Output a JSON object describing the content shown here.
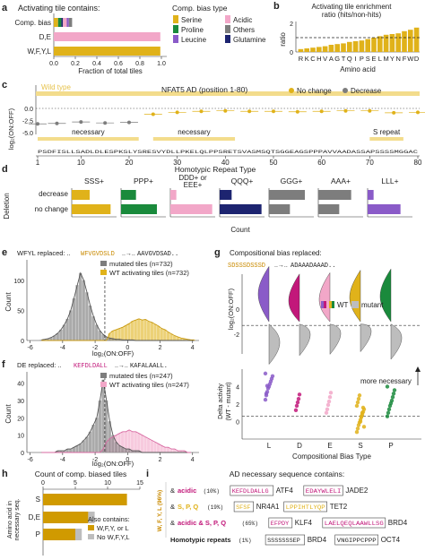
{
  "figure": {
    "colors": {
      "gold": "#e0b21a",
      "gold_light": "#f3dc8c",
      "pink": "#f2a7c8",
      "magenta": "#c2187a",
      "green": "#1a8a3c",
      "purple": "#8a5bc8",
      "navy": "#1d2470",
      "gray": "#7d7d7d",
      "lightgray": "#bdbdbd"
    }
  },
  "panel_a": {
    "letter": "a",
    "title": "Activating tile contains:",
    "xlabel": "Fraction of total tiles",
    "legend_title": "Comp. bias type",
    "legend": [
      {
        "label": "Serine",
        "color": "#e0b21a"
      },
      {
        "label": "Acidic",
        "color": "#f2a7c8"
      },
      {
        "label": "Proline",
        "color": "#1a8a3c"
      },
      {
        "label": "Others",
        "color": "#7d7d7d"
      },
      {
        "label": "Leucine",
        "color": "#8a5bc8"
      },
      {
        "label": "Glutamine",
        "color": "#1d2470"
      }
    ],
    "chart_data": {
      "type": "bar",
      "orientation": "horizontal",
      "categories": [
        "Comp. bias",
        "D,E",
        "W,F,Y,L"
      ],
      "xlim": [
        0,
        1.0
      ],
      "xticks": [
        "0.0",
        "0.2",
        "0.4",
        "0.6",
        "0.8",
        "1.0"
      ],
      "series": [
        {
          "name": "Serine",
          "values": [
            0.04,
            0,
            0
          ]
        },
        {
          "name": "Proline",
          "values": [
            0.03,
            0,
            0
          ]
        },
        {
          "name": "Glutamine",
          "values": [
            0.015,
            0,
            0
          ]
        },
        {
          "name": "Acidic",
          "values": [
            0.035,
            0.99,
            0
          ]
        },
        {
          "name": "Leucine",
          "values": [
            0.02,
            0,
            0
          ]
        },
        {
          "name": "Others",
          "values": [
            0.03,
            0,
            0
          ]
        },
        {
          "name": "W,F,Y,L",
          "values": [
            0,
            0,
            0.99
          ]
        }
      ]
    }
  },
  "panel_b": {
    "letter": "b",
    "title_line1": "Activating tile enrichment",
    "title_line2": "ratio (hits/non-hits)",
    "ylabel": "ratio",
    "xlabel": "Amino acid",
    "chart_data": {
      "type": "bar",
      "categories": [
        "R",
        "K",
        "C",
        "H",
        "V",
        "A",
        "G",
        "T",
        "Q",
        "I",
        "P",
        "S",
        "E",
        "L",
        "M",
        "Y",
        "N",
        "F",
        "W",
        "D"
      ],
      "values": [
        0.2,
        0.25,
        0.3,
        0.35,
        0.4,
        0.5,
        0.55,
        0.6,
        0.7,
        0.75,
        0.8,
        0.9,
        1.0,
        1.1,
        1.2,
        1.25,
        1.3,
        1.45,
        1.55,
        1.7
      ],
      "ylim": [
        0,
        2
      ],
      "yticks": [
        "0",
        "2"
      ],
      "reference_line": 1
    }
  },
  "panel_c": {
    "letter": "c",
    "wildtype_label": "Wild type",
    "title": "NFAT5 AD (position 1-80)",
    "legend_nochange": "No change",
    "legend_decrease": "Decrease",
    "ylabel": "log₂(ON:OFF)",
    "yticks": [
      "0.0",
      "-2.5",
      "-5.0"
    ],
    "region_labels": [
      "necessary",
      "necessary",
      "S repeat"
    ],
    "sequence": "PSDFISLLSADLDLESPKSLYSRESVYDLLPKELQLPPSRETSVASMSQTSGGEAGSPPPAVVAADASSAPSSSSMGGAC",
    "xticks": [
      "1",
      "10",
      "20",
      "30",
      "40",
      "50",
      "60",
      "70",
      "80"
    ],
    "chart_data": {
      "type": "line",
      "x": [
        1,
        5,
        10,
        15,
        20,
        25,
        30,
        35,
        40,
        45,
        50,
        55,
        60,
        65,
        70,
        75,
        80
      ],
      "wild_type": 0.4,
      "mutant_means": [
        -3.2,
        -3.1,
        -2.8,
        -3.0,
        -2.9,
        -1.2,
        -0.8,
        -0.6,
        -0.5,
        -0.6,
        -0.6,
        -0.7,
        -0.6,
        -0.5,
        -0.5,
        -0.9,
        -0.8
      ]
    }
  },
  "panel_d": {
    "letter": "d",
    "title": "Homotypic Repeat Type",
    "ylabel": "Deletion",
    "xlabel": "Count",
    "row_labels": [
      "decrease",
      "no change"
    ],
    "chart_data": {
      "type": "bar",
      "orientation": "horizontal",
      "categories": [
        "decrease",
        "no change"
      ],
      "series": [
        {
          "name": "SSS+",
          "color": "#e0b21a",
          "values": [
            6,
            13
          ]
        },
        {
          "name": "PPP+",
          "color": "#1a8a3c",
          "values": [
            5,
            12
          ]
        },
        {
          "name": "DDD+ or EEE+",
          "color": "#f2a7c8",
          "values": [
            2,
            14
          ]
        },
        {
          "name": "QQQ+",
          "color": "#1d2470",
          "values": [
            4,
            14
          ]
        },
        {
          "name": "GGG+",
          "color": "#7d7d7d",
          "values": [
            12,
            7
          ]
        },
        {
          "name": "AAA+",
          "color": "#7d7d7d",
          "values": [
            11,
            7
          ]
        },
        {
          "name": "LLL+",
          "color": "#8a5bc8",
          "values": [
            2,
            11
          ]
        }
      ]
    }
  },
  "panel_e": {
    "letter": "e",
    "replaced_label": "WFYL replaced: ..",
    "seq_before": "WFVGVDSLD",
    "seq_after": "AAVGVDSAD..",
    "arrow": "..→..",
    "legend_mutated": "mutated tiles (n=732)",
    "legend_wt": "WT activating tiles (n=732)",
    "ylabel": "Count",
    "xlabel": "log₂(ON:OFF)",
    "yticks": [
      "0",
      "50",
      "100"
    ],
    "xticks": [
      "-6",
      "-4",
      "-2",
      "0",
      "2",
      "4"
    ],
    "chart_data": {
      "type": "histogram",
      "bins_x": [
        -5.4,
        -5.2,
        -5.0,
        -4.8,
        -4.6,
        -4.4,
        -4.2,
        -4.0,
        -3.8,
        -3.6,
        -3.4,
        -3.2,
        -3.0,
        -2.8,
        -2.6,
        -2.4,
        -2.2,
        -2.0,
        -1.8,
        -1.6,
        -1.4,
        -1.2,
        -1.0,
        -0.8,
        -0.6,
        -0.4,
        -0.2,
        0.0,
        0.2,
        0.4,
        0.6,
        0.8,
        1.0,
        1.2,
        1.4,
        1.6,
        1.8,
        2.0,
        2.2,
        2.4,
        2.6,
        2.8,
        3.0,
        3.2,
        3.4,
        3.6,
        3.8,
        4.0
      ],
      "mutated": [
        1,
        2,
        3,
        5,
        8,
        12,
        18,
        26,
        36,
        50,
        70,
        92,
        112,
        100,
        80,
        58,
        40,
        26,
        16,
        10,
        6,
        4,
        3,
        2,
        2,
        1,
        1,
        1,
        1,
        0,
        0,
        0,
        0,
        0,
        0,
        0,
        0,
        0,
        0,
        0,
        0,
        0,
        0,
        0,
        0,
        0,
        0,
        0
      ],
      "wt": [
        0,
        0,
        0,
        0,
        0,
        0,
        0,
        0,
        0,
        0,
        0,
        0,
        0,
        0,
        0,
        0,
        0,
        0,
        0,
        0,
        0,
        12,
        16,
        18,
        20,
        22,
        25,
        28,
        32,
        34,
        36,
        34,
        35,
        32,
        30,
        27,
        24,
        20,
        18,
        14,
        11,
        8,
        6,
        4,
        3,
        2,
        1,
        1
      ],
      "threshold": -1.4,
      "xlim": [
        -6.2,
        4.4
      ],
      "ylim": [
        0,
        125
      ]
    }
  },
  "panel_f": {
    "letter": "f",
    "replaced_label": "DE replaced: ..",
    "seq_before": "KEFDLDALL",
    "seq_after": "KAFALAALL.",
    "arrow": "..→..",
    "legend_mutated": "mutated tiles (n=247)",
    "legend_wt": "WT activating tiles (n=247)",
    "ylabel": "Count",
    "xlabel": "log₂(ON:OFF)",
    "yticks": [
      "0",
      "10",
      "20",
      "30",
      "40"
    ],
    "xticks": [
      "-6",
      "-4",
      "-2",
      "0",
      "2",
      "4"
    ],
    "chart_data": {
      "type": "histogram",
      "bins_x": [
        -5.4,
        -5.2,
        -5.0,
        -4.8,
        -4.6,
        -4.4,
        -4.2,
        -4.0,
        -3.8,
        -3.6,
        -3.4,
        -3.2,
        -3.0,
        -2.8,
        -2.6,
        -2.4,
        -2.2,
        -2.0,
        -1.8,
        -1.6,
        -1.4,
        -1.2,
        -1.0,
        -0.8,
        -0.6,
        -0.4,
        -0.2,
        0.0,
        0.2,
        0.4,
        0.6,
        0.8,
        1.0,
        1.2,
        1.4,
        1.6,
        1.8,
        2.0,
        2.2,
        2.4,
        2.6,
        2.8,
        3.0,
        3.2,
        3.4,
        3.6,
        3.8
      ],
      "mutated": [
        0,
        0,
        0,
        0,
        0,
        1,
        1,
        1,
        2,
        2,
        3,
        4,
        5,
        7,
        9,
        12,
        16,
        20,
        30,
        42,
        30,
        18,
        10,
        6,
        4,
        3,
        2,
        2,
        1,
        1,
        1,
        0,
        0,
        0,
        0,
        0,
        0,
        0,
        0,
        0,
        0,
        0,
        0,
        0,
        0,
        0,
        0
      ],
      "wt": [
        0,
        0,
        0,
        0,
        0,
        0,
        0,
        0,
        0,
        0,
        0,
        0,
        0,
        0,
        0,
        0,
        0,
        0,
        0,
        2,
        6,
        8,
        9,
        10,
        11,
        12,
        12,
        13,
        12,
        12,
        11,
        10,
        9,
        8,
        7,
        6,
        5,
        4,
        3,
        3,
        2,
        2,
        1,
        1,
        1,
        0,
        0
      ],
      "threshold": -1.4,
      "xlim": [
        -6.2,
        4.4
      ],
      "ylim": [
        0,
        45
      ]
    }
  },
  "panel_g": {
    "letter": "g",
    "title": "Compositional bias replaced:",
    "seq_before": "SDSSSDSSSD",
    "seq_after": "ADAAADAAAD..",
    "arrow": "..→..",
    "legend_wt": "WT",
    "legend_mutant": "mutant",
    "violin_ylabel": "log₂(ON:OFF)",
    "violin_yticks": [
      "0",
      "-2"
    ],
    "strip_ylabel_1": "Delta activity",
    "strip_ylabel_2": "(WT - mutant)",
    "strip_yticks": [
      "0",
      "2",
      "4"
    ],
    "strip_annotation": "more necessary",
    "xlabel": "Compositional Bias Type",
    "categories": [
      "L",
      "D",
      "E",
      "S",
      "P"
    ],
    "chart_data": {
      "type": "violin+strip",
      "categories": [
        "L",
        "D",
        "E",
        "S",
        "P"
      ],
      "colors": [
        "#8a5bc8",
        "#c2187a",
        "#f2a7c8",
        "#e0b21a",
        "#1a8a3c"
      ],
      "wt_median": [
        1.2,
        0.6,
        0.7,
        0.9,
        1.0
      ],
      "mutant_median": [
        -2.6,
        -1.9,
        -1.8,
        -1.6,
        -2.2
      ],
      "delta_values": [
        [
          2.5,
          3.0,
          3.4,
          3.8,
          4.0,
          4.3,
          4.6,
          4.9,
          5.2,
          5.5,
          3.2,
          4.1
        ],
        [
          1.3,
          1.8,
          2.2,
          2.6,
          3.1
        ],
        [
          1.0,
          1.4,
          1.9,
          2.3,
          2.8,
          3.3
        ],
        [
          -1.2,
          -0.8,
          -0.4,
          -0.1,
          0.2,
          0.5,
          0.8,
          1.1,
          1.4,
          1.8,
          2.2,
          2.6,
          3.0,
          0.0,
          0.6,
          1.0,
          1.6,
          -0.6
        ],
        [
          0.6,
          1.0,
          1.4,
          1.8,
          2.1,
          2.4,
          2.8,
          3.2,
          3.6,
          4.0
        ]
      ],
      "delta_ylim": [
        -2,
        6
      ]
    }
  },
  "panel_h": {
    "letter": "h",
    "title": "Count of comp. biased tiles",
    "ylabel_1": "Amino acid in",
    "ylabel_2": "necessary seq.",
    "legend_title": "Also contains:",
    "legend": [
      "W,F,Y, or L",
      "No W,F,Y,L"
    ],
    "xticks": [
      "0",
      "5",
      "10",
      "15"
    ],
    "chart_data": {
      "type": "bar",
      "orientation": "horizontal",
      "categories": [
        "S",
        "D,E",
        "P"
      ],
      "series": [
        {
          "name": "W,F,Y, or L",
          "values": [
            13,
            7,
            5
          ]
        },
        {
          "name": "No W,F,Y,L",
          "values": [
            0,
            1,
            1
          ]
        }
      ],
      "xlim": [
        0,
        15
      ]
    }
  },
  "panel_i": {
    "letter": "i",
    "title": "AD necessary sequence contains:",
    "side_label": "W, F, Y, L (96%)",
    "rows": [
      {
        "prefix": "& ",
        "tag": "acidic",
        "pct": "(10%)",
        "seq1": "KEFDLDALLG",
        "gene1": "ATF4",
        "seq2": "EDAYWLELI",
        "gene2": "JADE2"
      },
      {
        "prefix": "& ",
        "tag": "S, P, Q",
        "pct": "(19%)",
        "seq1": "SFSF",
        "gene1": "NR4A1",
        "seq2": "LPPIHTLYQP",
        "gene2": "TET2"
      },
      {
        "prefix": "& ",
        "tag": "acidic & S, P, Q",
        "pct": "(65%)",
        "seq1": "EFPDY",
        "gene1": "KLF4",
        "seq2": "LAELQEQLAAWLLSG",
        "gene2": "BRD4"
      },
      {
        "prefix": "",
        "tag": "Homotypic repeats",
        "pct": "(1%)",
        "seq1": "SSSSSSSEP",
        "gene1": "BRD4",
        "seq2": "VNGIPPCPPP",
        "gene2": "OCT4"
      }
    ]
  }
}
